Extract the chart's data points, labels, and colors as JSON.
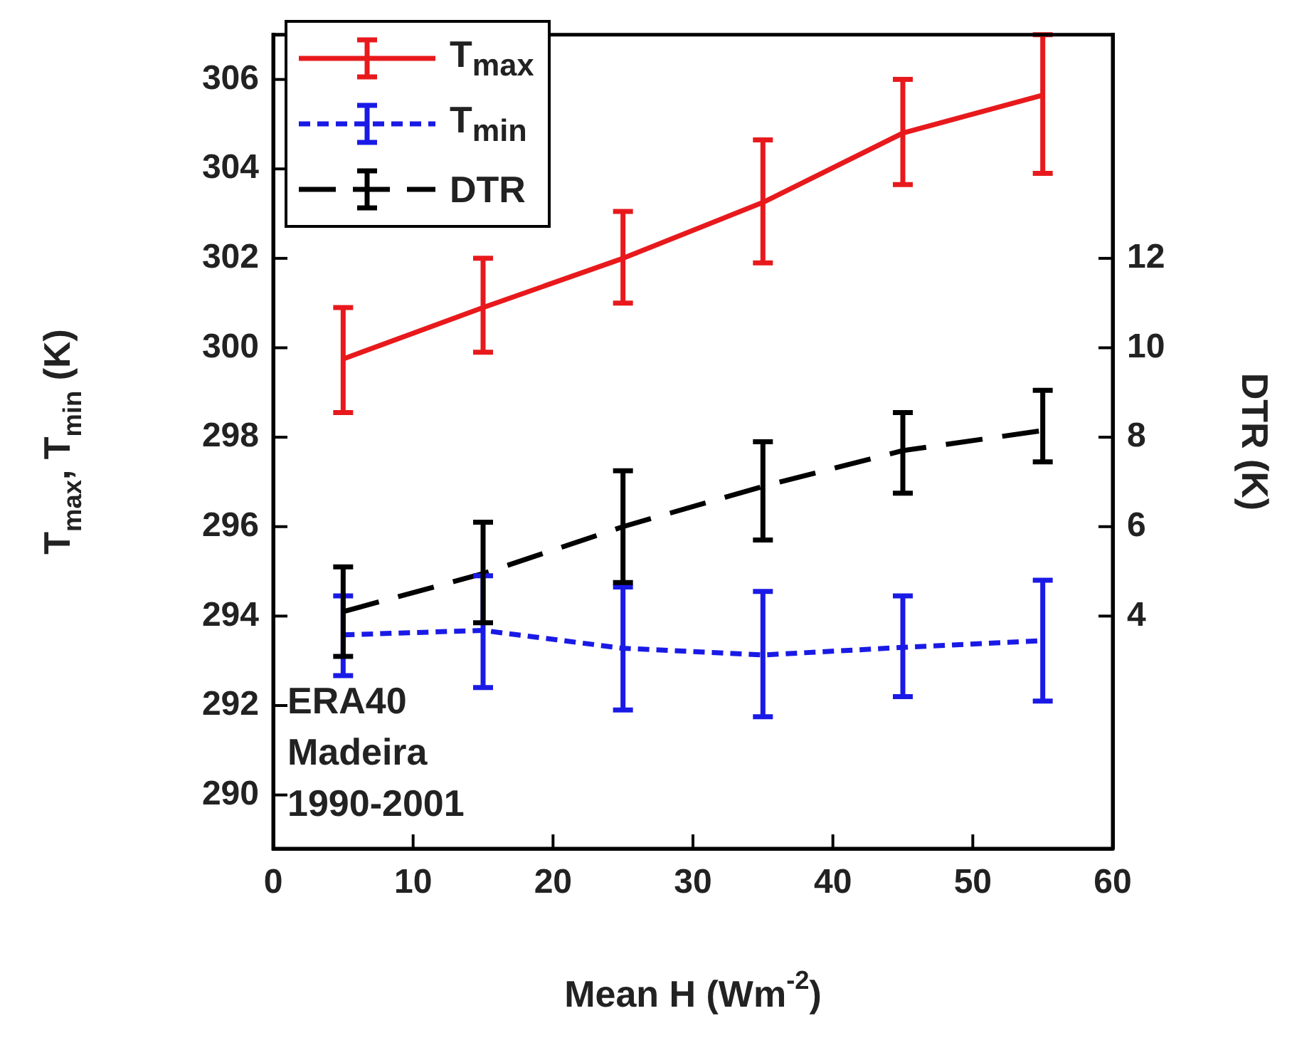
{
  "chart_data": {
    "type": "line",
    "xlabel": "Mean H (Wm$^{-2}$)",
    "ylabel": "T$_{max}$, T$_{min}$ (K)",
    "y2label": "DTR (K)",
    "x": [
      5,
      15,
      25,
      35,
      45,
      55
    ],
    "series": [
      {
        "name": "T$_{max}$",
        "color": "#e8191c",
        "line_style": "solid",
        "values": [
          299.75,
          300.9,
          302.0,
          303.25,
          304.8,
          305.65
        ],
        "errors": [
          [
            298.55,
            300.9
          ],
          [
            299.9,
            302.0
          ],
          [
            301.0,
            303.05
          ],
          [
            301.9,
            304.65
          ],
          [
            303.65,
            306.0
          ],
          [
            303.9,
            307.0
          ]
        ]
      },
      {
        "name": "T$_{min}$",
        "color": "#1a1ae6",
        "line_style": "dotted",
        "values": [
          293.58,
          293.68,
          293.28,
          293.13,
          293.3,
          293.45
        ],
        "errors": [
          [
            292.67,
            294.45
          ],
          [
            292.4,
            294.9
          ],
          [
            291.9,
            294.65
          ],
          [
            291.75,
            294.55
          ],
          [
            292.2,
            294.45
          ],
          [
            292.1,
            294.8
          ]
        ]
      },
      {
        "name": "DTR",
        "color": "#000000",
        "line_style": "dashed",
        "axis": "y2",
        "values": [
          4.1,
          4.95,
          6.0,
          6.9,
          7.7,
          8.15
        ],
        "errors": [
          [
            3.1,
            5.1
          ],
          [
            3.85,
            6.1
          ],
          [
            4.75,
            7.25
          ],
          [
            5.7,
            7.9
          ],
          [
            6.75,
            8.55
          ],
          [
            7.45,
            9.05
          ]
        ]
      }
    ],
    "xlim": [
      0,
      60
    ],
    "xticks": [
      0,
      10,
      20,
      30,
      40,
      50,
      60
    ],
    "ylim": [
      288.8,
      307
    ],
    "yticks": [
      290,
      292,
      294,
      296,
      298,
      300,
      302,
      304,
      306
    ],
    "y2lim": [
      -1.2,
      17
    ],
    "y2ticks": [
      4,
      6,
      8,
      10,
      12
    ],
    "annotations": [
      "ERA40",
      "Madeira",
      "1990-2001"
    ],
    "legend": "top left",
    "grid": false,
    "marker": "none"
  }
}
